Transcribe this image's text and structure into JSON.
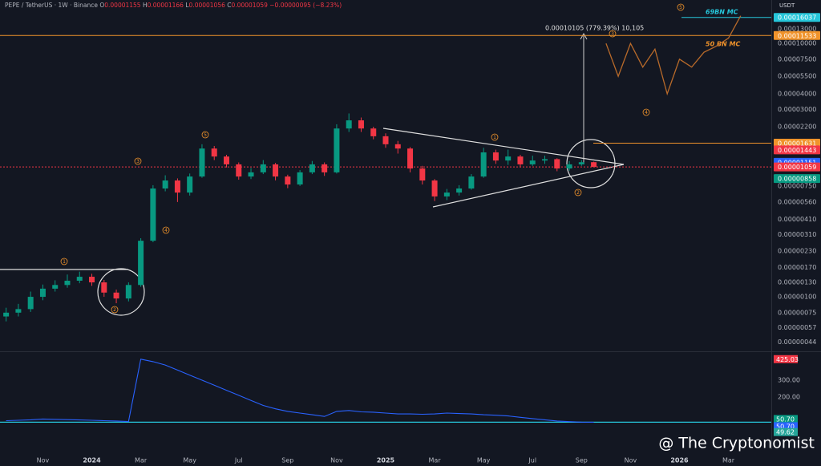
{
  "header": {
    "open_prefix": "O",
    "high_prefix": "H",
    "low_prefix": "L",
    "close_prefix": "C",
    "change": "−0.00000095 (−8.23%)"
  },
  "watermark": "@ The Cryptonomist",
  "chart_data": [
    {
      "type": "candlestick",
      "title": "PEPE / TetherUS · 1W · Binance",
      "currency": "USDT",
      "categories": [
        null,
        null,
        null,
        "Nov",
        null,
        null,
        null,
        "2024",
        null,
        null,
        null,
        "Mar",
        null,
        null,
        null,
        "May",
        null,
        null,
        null,
        "Jul",
        null,
        null,
        null,
        "Sep",
        null,
        null,
        null,
        "Nov",
        null,
        null,
        null,
        "2025",
        null,
        null,
        null,
        "Mar",
        null,
        null,
        null,
        "May",
        null,
        null,
        null,
        "Jul",
        null,
        null,
        null,
        "Sep",
        null,
        null,
        null,
        "Nov",
        null,
        null,
        null,
        "2026",
        null,
        null,
        null,
        "Mar",
        null,
        null,
        null
      ],
      "open": [
        7e-07,
        7.5e-07,
        8e-07,
        1e-06,
        1.16e-06,
        1.24e-06,
        1.34e-06,
        1.44e-06,
        1.3e-06,
        1.08e-06,
        9.7e-07,
        1.24e-06,
        2.77e-06,
        7.16e-06,
        8.28e-06,
        6.65e-06,
        8.9e-06,
        1.48e-05,
        1.28e-05,
        1.11e-05,
        8.9e-06,
        9.6e-06,
        1.11e-05,
        8.9e-06,
        7.7e-06,
        9.6e-06,
        1.11e-05,
        9.6e-06,
        2.13e-05,
        2.47e-05,
        2.13e-05,
        1.85e-05,
        1.6e-05,
        1.48e-05,
        1.03e-05,
        8.28e-06,
        6.2e-06,
        6.65e-06,
        7.16e-06,
        8.9e-06,
        1.38e-05,
        1.19e-05,
        1.28e-05,
        1.11e-05,
        1.19e-05,
        1.22e-05,
        1.03e-05,
        1.11e-05,
        1.155e-05,
        null,
        null,
        null,
        null,
        null,
        null,
        null,
        null,
        null,
        null,
        null,
        null,
        null,
        null
      ],
      "high": [
        8.2e-07,
        8.8e-07,
        1.1e-06,
        1.25e-06,
        1.35e-06,
        1.5e-06,
        1.58e-06,
        1.52e-06,
        1.36e-06,
        1.14e-06,
        1.3e-06,
        2.9e-06,
        7.6e-06,
        9.1e-06,
        8.6e-06,
        9.4e-06,
        1.6e-05,
        1.55e-05,
        1.32e-05,
        1.15e-05,
        1.04e-05,
        1.2e-05,
        1.14e-05,
        9.2e-06,
        1e-05,
        1.18e-05,
        1.15e-05,
        2.3e-05,
        2.8e-05,
        2.6e-05,
        2.2e-05,
        1.95e-05,
        1.7e-05,
        1.52e-05,
        1.08e-05,
        8.5e-06,
        7.1e-06,
        7.6e-06,
        9.3e-06,
        1.5e-05,
        1.45e-05,
        1.45e-05,
        1.32e-05,
        1.3e-05,
        1.3e-05,
        1.24e-05,
        1.18e-05,
        1.2e-05,
        1.166e-05,
        null,
        null,
        null,
        null,
        null,
        null,
        null,
        null,
        null,
        null,
        null,
        null,
        null,
        null
      ],
      "low": [
        6.4e-07,
        7e-07,
        7.6e-07,
        9.4e-07,
        1.1e-06,
        1.18e-06,
        1.28e-06,
        1.22e-06,
        1e-06,
        8.9e-07,
        9.2e-07,
        1.2e-06,
        2.7e-06,
        6.8e-06,
        5.6e-06,
        6.3e-06,
        8.7e-06,
        1.2e-05,
        1.05e-05,
        8.4e-06,
        8.5e-06,
        9.3e-06,
        8.3e-06,
        7.2e-06,
        7.5e-06,
        9.3e-06,
        9e-06,
        9.4e-06,
        2e-05,
        2e-05,
        1.75e-05,
        1.5e-05,
        1.35e-05,
        9.6e-06,
        7.7e-06,
        5.7e-06,
        5.8e-06,
        6.3e-06,
        7e-06,
        8.7e-06,
        1.12e-05,
        1.1e-05,
        1.05e-05,
        1.08e-05,
        1.12e-05,
        9.8e-06,
        9.9e-06,
        1.08e-05,
        1.056e-05,
        null,
        null,
        null,
        null,
        null,
        null,
        null,
        null,
        null,
        null,
        null,
        null,
        null,
        null
      ],
      "close": [
        7.5e-07,
        8e-07,
        1e-06,
        1.16e-06,
        1.24e-06,
        1.34e-06,
        1.44e-06,
        1.3e-06,
        1.08e-06,
        9.7e-07,
        1.24e-06,
        2.77e-06,
        7.16e-06,
        8.28e-06,
        6.65e-06,
        8.9e-06,
        1.48e-05,
        1.28e-05,
        1.11e-05,
        8.9e-06,
        9.6e-06,
        1.11e-05,
        8.9e-06,
        7.7e-06,
        9.6e-06,
        1.11e-05,
        9.6e-06,
        2.13e-05,
        2.47e-05,
        2.13e-05,
        1.85e-05,
        1.6e-05,
        1.48e-05,
        1.03e-05,
        8.28e-06,
        6.2e-06,
        6.65e-06,
        7.16e-06,
        8.9e-06,
        1.38e-05,
        1.19e-05,
        1.28e-05,
        1.11e-05,
        1.19e-05,
        1.22e-05,
        1.03e-05,
        1.11e-05,
        1.154e-05,
        1.059e-05,
        null,
        null,
        null,
        null,
        null,
        null,
        null,
        null,
        null,
        null,
        null,
        null,
        null,
        null
      ],
      "up_color": "#089981",
      "down_color": "#f23645",
      "projection": {
        "color": "#b86a2a",
        "values": [
          null,
          null,
          null,
          null,
          null,
          null,
          null,
          null,
          null,
          null,
          null,
          null,
          null,
          null,
          null,
          null,
          null,
          null,
          null,
          null,
          null,
          null,
          null,
          null,
          null,
          null,
          null,
          null,
          null,
          null,
          null,
          null,
          null,
          null,
          null,
          null,
          null,
          null,
          null,
          null,
          null,
          null,
          null,
          null,
          null,
          null,
          null,
          null,
          null,
          0.0001,
          5.5e-05,
          0.0001,
          6.5e-05,
          9e-05,
          4e-05,
          7.5e-05,
          6.5e-05,
          8.5e-05,
          9.5e-05,
          0.00011,
          0.000165,
          null,
          null
        ]
      },
      "log_scale": true,
      "ylim": [
        3.77e-07,
        0.00022
      ],
      "yticks": [
        {
          "value": 0.00013,
          "label": "0.00013000"
        },
        {
          "value": 0.0001,
          "label": "0.00010000"
        },
        {
          "value": 7.5e-05,
          "label": "0.00007500"
        },
        {
          "value": 5.5e-05,
          "label": "0.00005500"
        },
        {
          "value": 4e-05,
          "label": "0.00004000"
        },
        {
          "value": 3e-05,
          "label": "0.00003000"
        },
        {
          "value": 2.2e-05,
          "label": "0.00002200"
        },
        {
          "value": 7.5e-06,
          "label": "0.00000750"
        },
        {
          "value": 5.6e-06,
          "label": "0.00000560"
        },
        {
          "value": 4.1e-06,
          "label": "0.00000410"
        },
        {
          "value": 3.1e-06,
          "label": "0.00000310"
        },
        {
          "value": 2.3e-06,
          "label": "0.00000230"
        },
        {
          "value": 1.7e-06,
          "label": "0.00000170"
        },
        {
          "value": 1.3e-06,
          "label": "0.00000130"
        },
        {
          "value": 1e-06,
          "label": "0.00000100"
        },
        {
          "value": 7.5e-07,
          "label": "0.00000075"
        },
        {
          "value": 5.7e-07,
          "label": "0.00000057"
        },
        {
          "value": 4.4e-07,
          "label": "0.00000044"
        }
      ],
      "price_lines": [
        {
          "value": 0.00016037,
          "label": "0.00016037",
          "color": "#26c6da"
        },
        {
          "value": 0.00011533,
          "label": "0.00011533",
          "color": "#f0932b"
        },
        {
          "value": 1.631e-05,
          "label": "0.00001631",
          "color": "#f0932b"
        },
        {
          "value": 1.443e-05,
          "label": "0.00001443",
          "color": "#f23645"
        },
        {
          "value": 1.151e-05,
          "label": "0.00001151",
          "color": "#2962ff"
        },
        {
          "value": 1.059e-05,
          "label": "0.00001059",
          "color": "#f23645"
        },
        {
          "value": 8.58e-06,
          "label": "0.00000858",
          "color": "#089981"
        }
      ],
      "annotations": {
        "measure": "0.00010105 (779.39%) 10,105",
        "mc_69": "69BN MC",
        "mc_50": "50 BN MC",
        "waves": [
          "1",
          "2",
          "3",
          "4",
          "5",
          "1",
          "2",
          "3",
          "4",
          "5"
        ]
      }
    },
    {
      "type": "line",
      "color": "#2962ff",
      "values": [
        60,
        62,
        65,
        70,
        68,
        66,
        64,
        62,
        60,
        58,
        55,
        425,
        410,
        390,
        360,
        330,
        300,
        270,
        240,
        210,
        180,
        150,
        130,
        115,
        105,
        95,
        85,
        115,
        120,
        112,
        110,
        105,
        100,
        100,
        98,
        100,
        105,
        102,
        100,
        95,
        92,
        88,
        80,
        72,
        65,
        58,
        54,
        51,
        50.7,
        null,
        null,
        null,
        null,
        null,
        null,
        null,
        null,
        null,
        null,
        null,
        null,
        null,
        null
      ],
      "ylim": [
        -14,
        462
      ],
      "yticks": [
        {
          "value": 300,
          "label": "300.00"
        },
        {
          "value": 200,
          "label": "200.00"
        }
      ],
      "value_lines": [
        {
          "value": 425.03,
          "label": "425.03",
          "color": "#f23645"
        },
        {
          "value": 50.7,
          "label": "50.70",
          "color": "#089981"
        },
        {
          "value": 50.7,
          "label": "50.70",
          "color": "#2962ff"
        },
        {
          "value": 49.62,
          "label": "49.62",
          "color": "#26a69a"
        }
      ]
    }
  ]
}
